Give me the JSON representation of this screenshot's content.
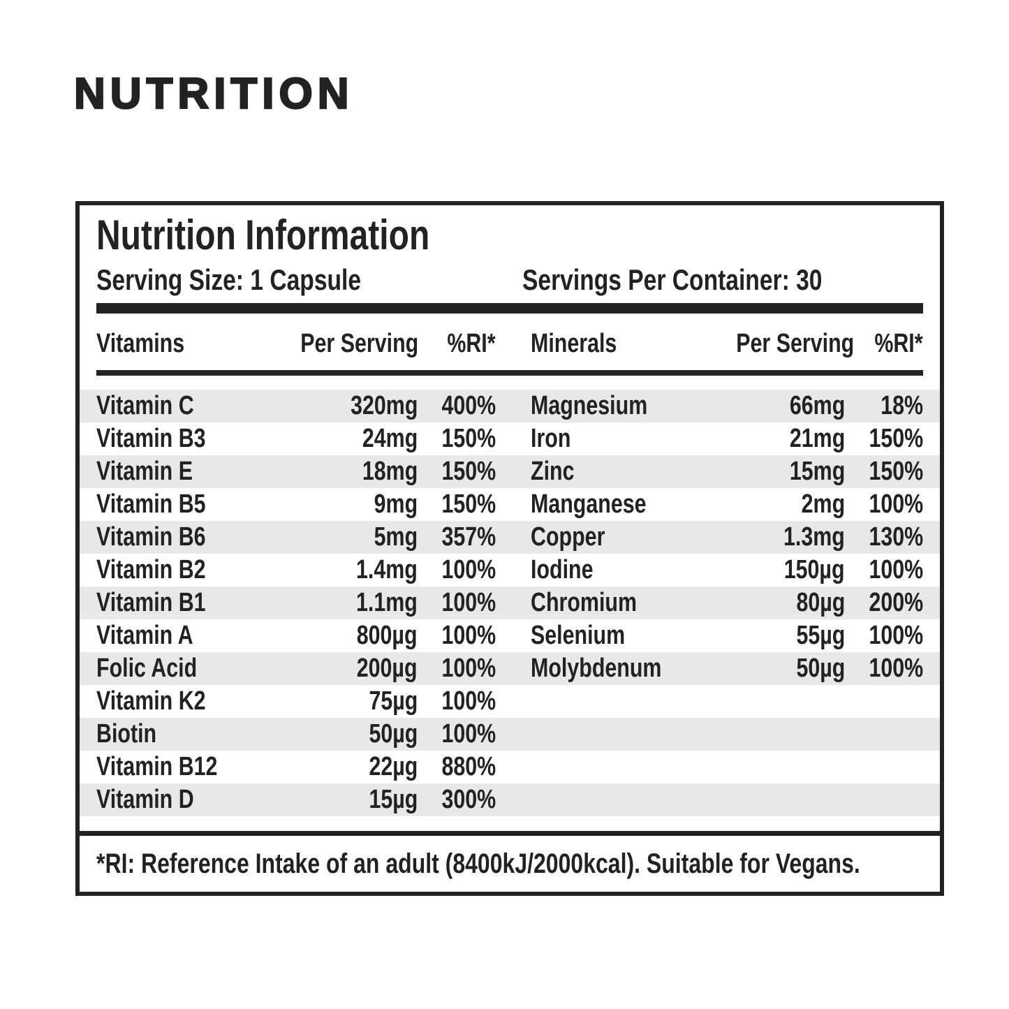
{
  "page": {
    "heading": "NUTRITION"
  },
  "panel": {
    "title": "Nutrition Information",
    "serving_size": "Serving Size: 1 Capsule",
    "servings_per_container": "Servings Per Container: 30",
    "footnote": "*RI: Reference Intake of an adult (8400kJ/2000kcal). Suitable for Vegans."
  },
  "table": {
    "headers": {
      "vitamins": "Vitamins",
      "vitamins_per_serving": "Per Serving",
      "vitamins_ri": "%RI*",
      "minerals": "Minerals",
      "minerals_per_serving": "Per Serving",
      "minerals_ri": "%RI*"
    },
    "vitamins": [
      {
        "name": "Vitamin C",
        "amount": "320mg",
        "ri": "400%"
      },
      {
        "name": "Vitamin B3",
        "amount": "24mg",
        "ri": "150%"
      },
      {
        "name": "Vitamin E",
        "amount": "18mg",
        "ri": "150%"
      },
      {
        "name": "Vitamin B5",
        "amount": "9mg",
        "ri": "150%"
      },
      {
        "name": "Vitamin B6",
        "amount": "5mg",
        "ri": "357%"
      },
      {
        "name": "Vitamin B2",
        "amount": "1.4mg",
        "ri": "100%"
      },
      {
        "name": "Vitamin B1",
        "amount": "1.1mg",
        "ri": "100%"
      },
      {
        "name": "Vitamin A",
        "amount": "800µg",
        "ri": "100%"
      },
      {
        "name": "Folic Acid",
        "amount": "200µg",
        "ri": "100%"
      },
      {
        "name": "Vitamin K2",
        "amount": "75µg",
        "ri": "100%"
      },
      {
        "name": "Biotin",
        "amount": "50µg",
        "ri": "100%"
      },
      {
        "name": "Vitamin B12",
        "amount": "22µg",
        "ri": "880%"
      },
      {
        "name": "Vitamin D",
        "amount": "15µg",
        "ri": "300%"
      }
    ],
    "minerals": [
      {
        "name": "Magnesium",
        "amount": "66mg",
        "ri": "18%"
      },
      {
        "name": "Iron",
        "amount": "21mg",
        "ri": "150%"
      },
      {
        "name": "Zinc",
        "amount": "15mg",
        "ri": "150%"
      },
      {
        "name": "Manganese",
        "amount": "2mg",
        "ri": "100%"
      },
      {
        "name": "Copper",
        "amount": "1.3mg",
        "ri": "130%"
      },
      {
        "name": "Iodine",
        "amount": "150µg",
        "ri": "100%"
      },
      {
        "name": "Chromium",
        "amount": "80µg",
        "ri": "200%"
      },
      {
        "name": "Selenium",
        "amount": "55µg",
        "ri": "100%"
      },
      {
        "name": "Molybdenum",
        "amount": "50µg",
        "ri": "100%"
      }
    ]
  },
  "colors": {
    "ink": "#222222",
    "stripe": "#e8e8e8",
    "background": "#ffffff"
  }
}
